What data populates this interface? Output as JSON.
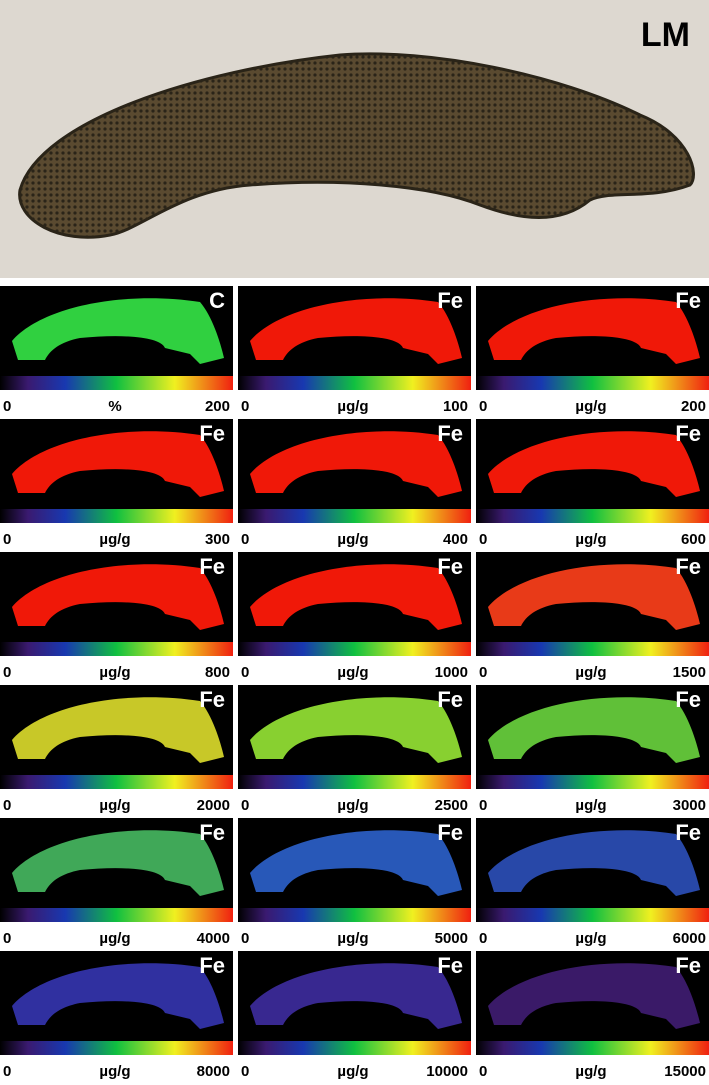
{
  "header": {
    "label": "LM"
  },
  "panels": [
    {
      "element": "C",
      "min": 0,
      "unit": "%",
      "max": 200
    },
    {
      "element": "Fe",
      "min": 0,
      "unit": "µg/g",
      "max": 100
    },
    {
      "element": "Fe",
      "min": 0,
      "unit": "µg/g",
      "max": 200
    },
    {
      "element": "Fe",
      "min": 0,
      "unit": "µg/g",
      "max": 300
    },
    {
      "element": "Fe",
      "min": 0,
      "unit": "µg/g",
      "max": 400
    },
    {
      "element": "Fe",
      "min": 0,
      "unit": "µg/g",
      "max": 600
    },
    {
      "element": "Fe",
      "min": 0,
      "unit": "µg/g",
      "max": 800
    },
    {
      "element": "Fe",
      "min": 0,
      "unit": "µg/g",
      "max": 1000
    },
    {
      "element": "Fe",
      "min": 0,
      "unit": "µg/g",
      "max": 1500
    },
    {
      "element": "Fe",
      "min": 0,
      "unit": "µg/g",
      "max": 2000
    },
    {
      "element": "Fe",
      "min": 0,
      "unit": "µg/g",
      "max": 2500
    },
    {
      "element": "Fe",
      "min": 0,
      "unit": "µg/g",
      "max": 3000
    },
    {
      "element": "Fe",
      "min": 0,
      "unit": "µg/g",
      "max": 4000
    },
    {
      "element": "Fe",
      "min": 0,
      "unit": "µg/g",
      "max": 5000
    },
    {
      "element": "Fe",
      "min": 0,
      "unit": "µg/g",
      "max": 6000
    },
    {
      "element": "Fe",
      "min": 0,
      "unit": "µg/g",
      "max": 8000
    },
    {
      "element": "Fe",
      "min": 0,
      "unit": "µg/g",
      "max": 10000
    },
    {
      "element": "Fe",
      "min": 0,
      "unit": "µg/g",
      "max": 15000
    }
  ]
}
